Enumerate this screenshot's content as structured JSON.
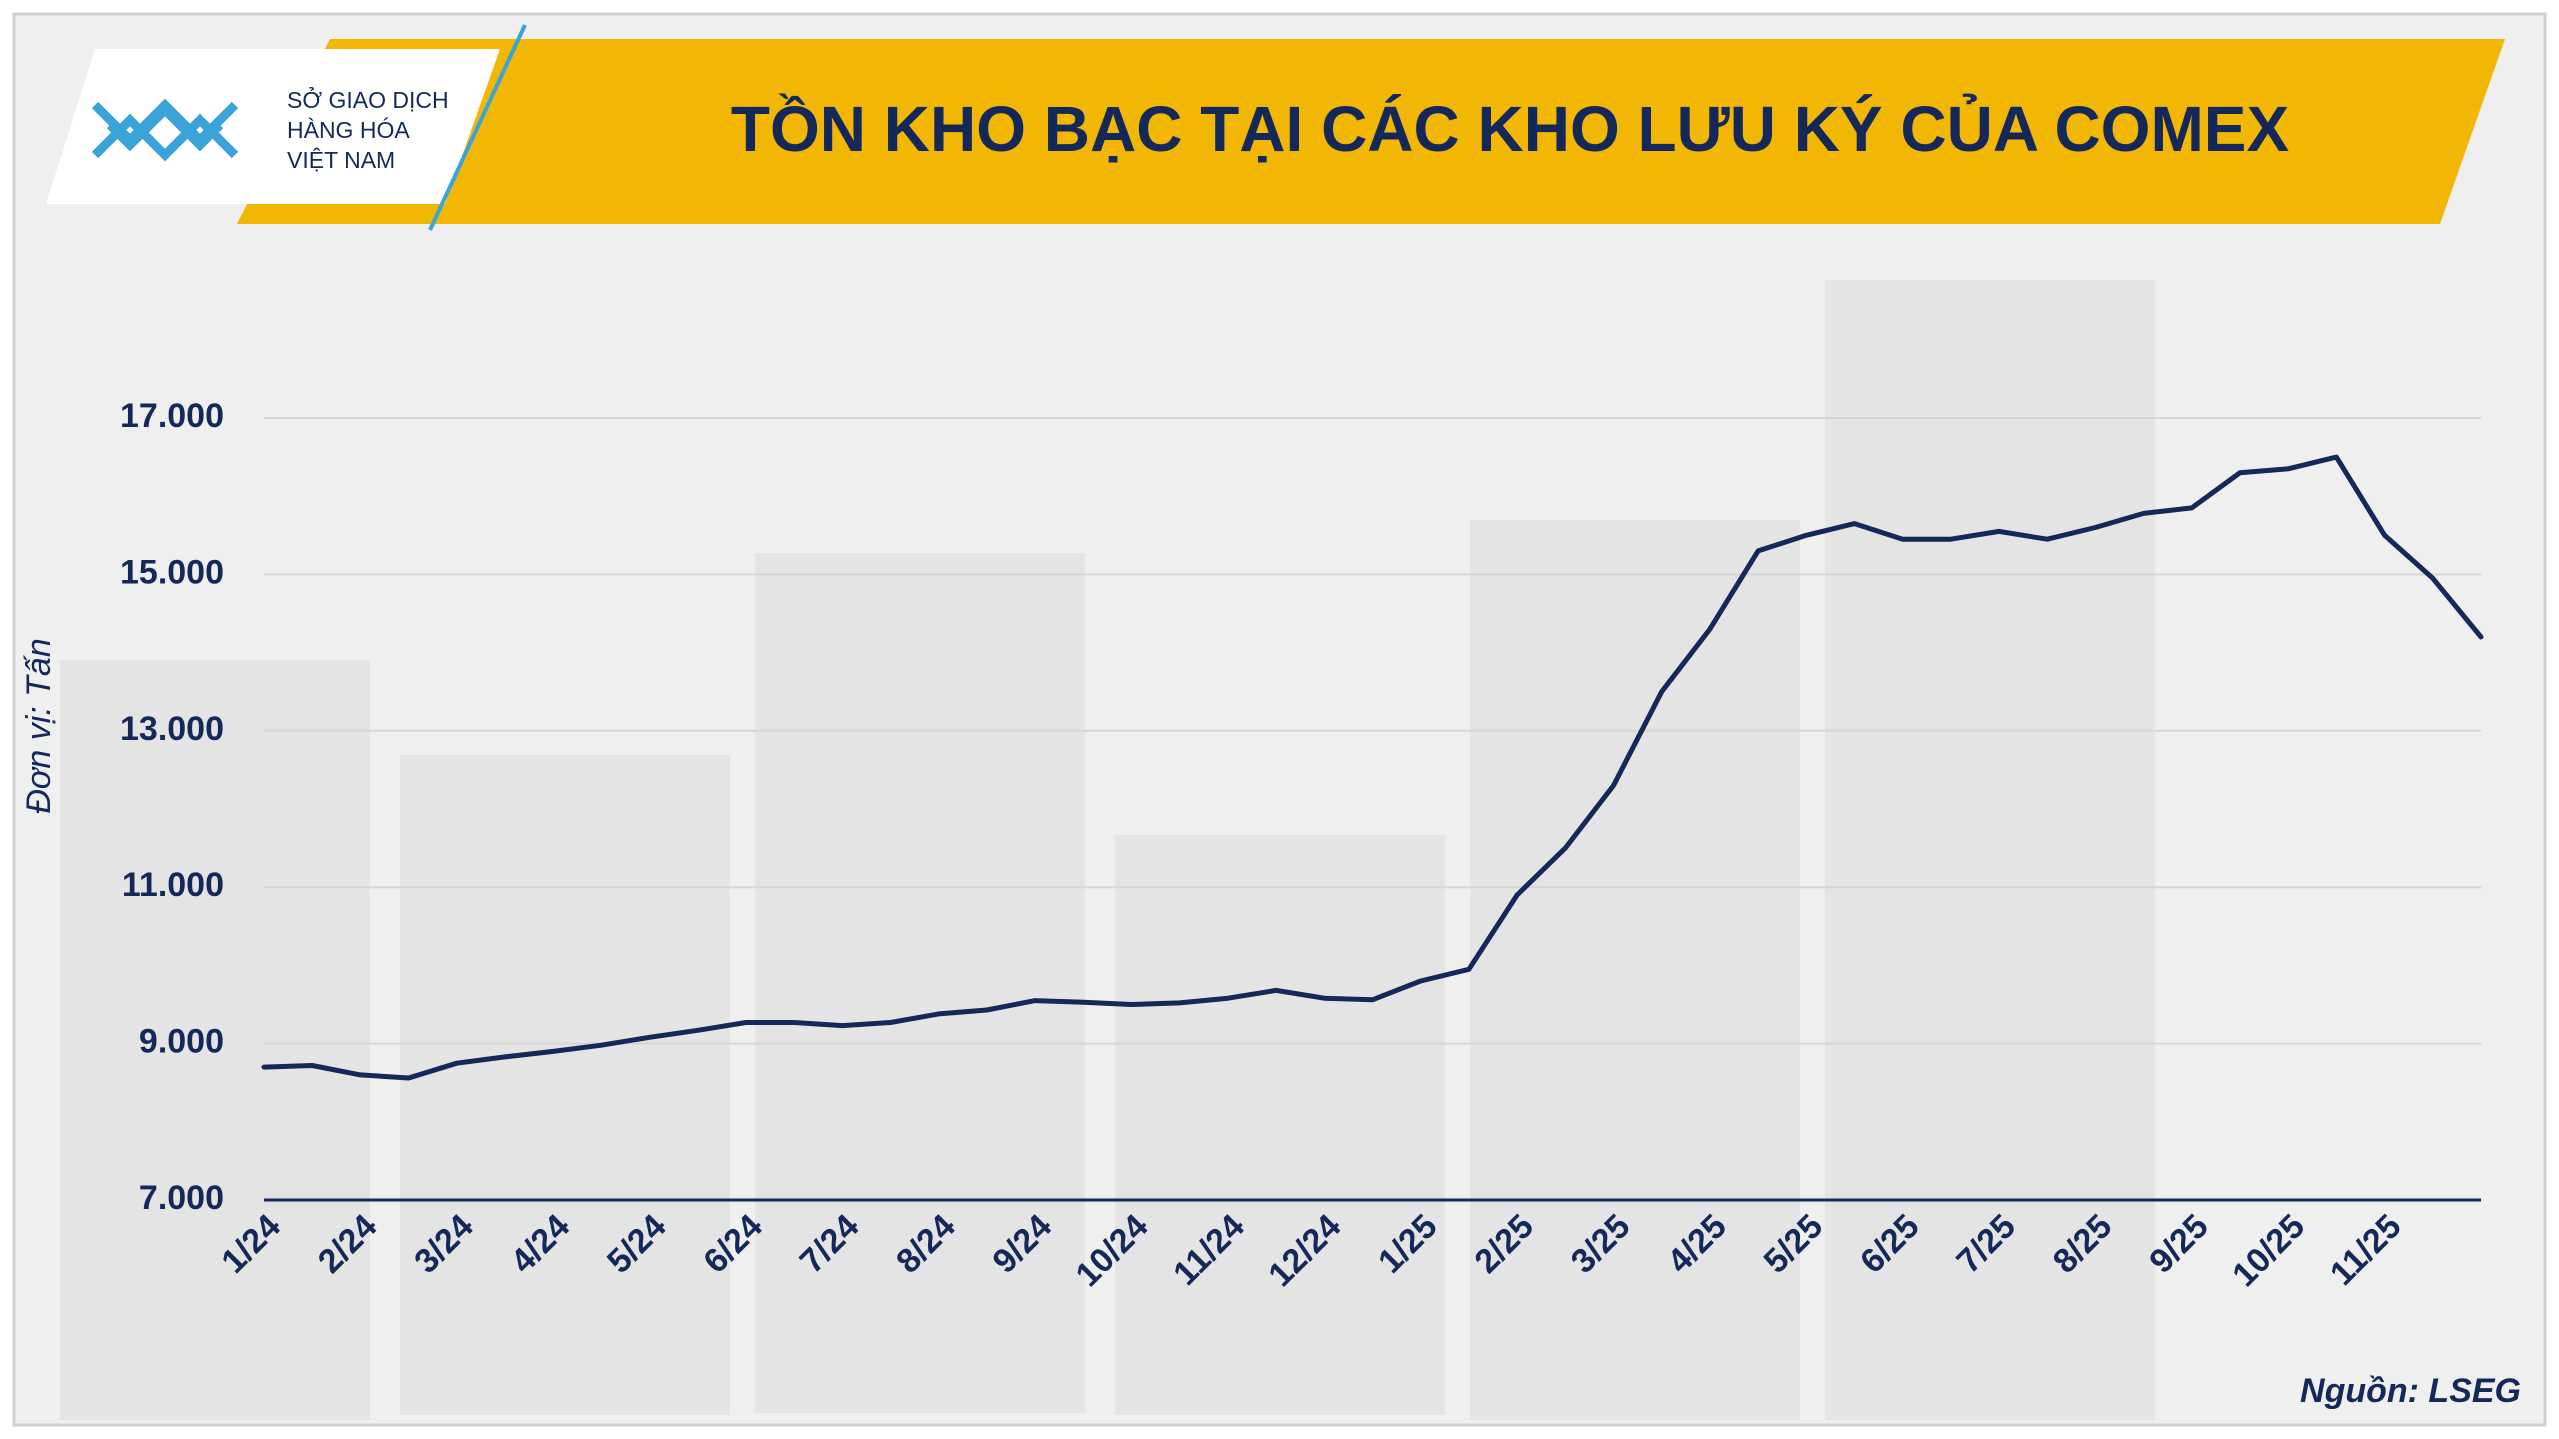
{
  "header": {
    "logo_lines": [
      "SỞ GIAO DỊCH",
      "HÀNG HÓA",
      "VIỆT NAM"
    ]
  },
  "chart_data": {
    "type": "line",
    "title": "TỒN KHO BẠC TẠI CÁC KHO LƯU KÝ CỦA COMEX",
    "y_label": "Đơn vị: Tấn",
    "categories": [
      "1/24",
      null,
      "2/24",
      null,
      "3/24",
      null,
      "4/24",
      null,
      "5/24",
      null,
      "6/24",
      null,
      "7/24",
      null,
      "8/24",
      null,
      "9/24",
      null,
      "10/24",
      null,
      "11/24",
      null,
      "12/24",
      null,
      "1/25",
      null,
      "2/25",
      null,
      "3/25",
      null,
      "4/25",
      null,
      "5/25",
      null,
      "6/25",
      null,
      "7/25",
      null,
      "8/25",
      null,
      "9/25",
      null,
      "10/25",
      null,
      "11/25",
      null,
      null
    ],
    "series": [
      {
        "color": "#15285a",
        "values": [
          8700,
          8720,
          8600,
          8560,
          8750,
          8830,
          8900,
          8980,
          9080,
          9170,
          9270,
          9270,
          9230,
          9270,
          9380,
          9430,
          9550,
          9530,
          9500,
          9520,
          9580,
          9680,
          9580,
          9560,
          9800,
          9950,
          10900,
          11500,
          12300,
          13500,
          14300,
          15300,
          15500,
          15650,
          15450,
          15450,
          15550,
          15450,
          15600,
          15780,
          15850,
          16300,
          16350,
          16500,
          15500,
          14950,
          14200
        ]
      }
    ],
    "ylim": [
      7000,
      17000
    ],
    "yticks": [
      {
        "value": 7000,
        "label": "7.000"
      },
      {
        "value": 9000,
        "label": "9.000"
      },
      {
        "value": 11000,
        "label": "11.000"
      },
      {
        "value": 13000,
        "label": "13.000"
      },
      {
        "value": 15000,
        "label": "15.000"
      },
      {
        "value": 17000,
        "label": "17.000"
      }
    ],
    "grid": true
  },
  "source": "Nguồn: LSEG"
}
